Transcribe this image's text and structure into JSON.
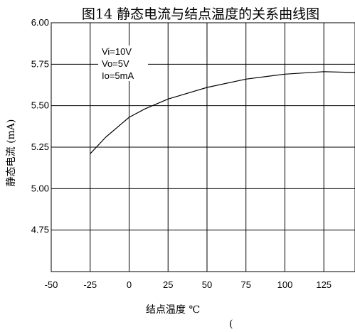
{
  "chart_data": {
    "type": "line",
    "title": "图14  静态电流与结点温度的关系曲线图",
    "xlabel": "结点温度  ℃",
    "ylabel": "静态电流  (mA)",
    "stray_text": "(",
    "x_ticks": [
      "-50",
      "-25",
      "0",
      "25",
      "50",
      "75",
      "100",
      "125"
    ],
    "y_ticks": [
      "6.00",
      "5.75",
      "5.50",
      "5.25",
      "5.00",
      "4.75"
    ],
    "xlim": [
      -50,
      145
    ],
    "ylim": [
      4.5,
      6.0
    ],
    "grid": true,
    "annotations": [
      "Vi=10V",
      "Vo=5V",
      "Io=5mA"
    ],
    "series": [
      {
        "x": [
          -25,
          -15,
          -5,
          0,
          10,
          25,
          50,
          75,
          100,
          125,
          145
        ],
        "values": [
          5.21,
          5.31,
          5.39,
          5.43,
          5.48,
          5.54,
          5.61,
          5.66,
          5.69,
          5.705,
          5.7
        ]
      }
    ]
  }
}
